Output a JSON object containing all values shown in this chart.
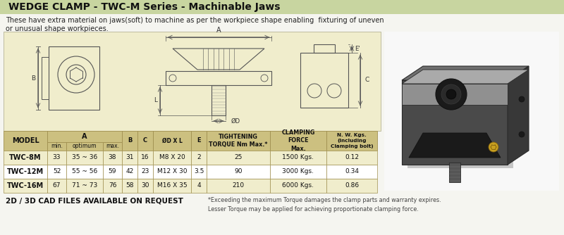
{
  "title": "WEDGE CLAMP - TWC-M Series - Machinable Jaws",
  "description_line1": "These have extra material on jaws(soft) to machine as per the workpiece shape enabling  fixturing of uneven",
  "description_line2": "or unusual shape workpieces.",
  "title_bg": "#c8d5a0",
  "diagram_bg": "#f0edcc",
  "table_header_bg": "#ccc080",
  "table_row0_bg": "#f0edcc",
  "table_row1_bg": "#ffffff",
  "table_border": "#a09050",
  "bg_color": "#f5f5f0",
  "rows": [
    [
      "TWC-8M",
      "33",
      "35 ~ 36",
      "38",
      "31",
      "16",
      "M8 X 20",
      "2",
      "25",
      "1500 Kgs.",
      "0.12"
    ],
    [
      "TWC-12M",
      "52",
      "55 ~ 56",
      "59",
      "42",
      "23",
      "M12 X 30",
      "3.5",
      "90",
      "3000 Kgs.",
      "0.34"
    ],
    [
      "TWC-16M",
      "67",
      "71 ~ 73",
      "76",
      "58",
      "30",
      "M16 X 35",
      "4",
      "210",
      "6000 Kgs.",
      "0.86"
    ]
  ],
  "footer_left": "2D / 3D CAD FILES AVAILABLE ON REQUEST",
  "footer_right": "*Exceeding the maximum Torque damages the clamp parts and warranty expires.\nLesser Torque may be applied for achieving proportionate clamping force."
}
